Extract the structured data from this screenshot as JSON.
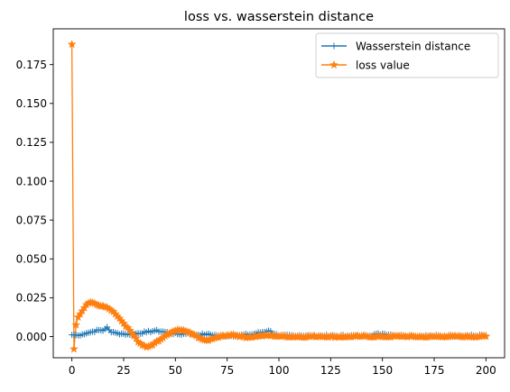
{
  "chart_data": {
    "type": "line",
    "title": "loss vs. wasserstein distance",
    "xlabel": "",
    "ylabel": "",
    "xlim": [
      -9,
      209
    ],
    "ylim": [
      -0.0136,
      0.198
    ],
    "xticks": [
      0,
      25,
      50,
      75,
      100,
      125,
      150,
      175,
      200
    ],
    "yticks": [
      0.0,
      0.025,
      0.05,
      0.075,
      0.1,
      0.125,
      0.15,
      0.175
    ],
    "ytick_labels": [
      "0.000",
      "0.025",
      "0.050",
      "0.075",
      "0.100",
      "0.125",
      "0.150",
      "0.175"
    ],
    "grid": false,
    "legend_position": "top-right",
    "series": [
      {
        "name": "Wasserstein distance",
        "color": "#1f77b4",
        "marker": "plus",
        "anchors": [
          [
            0,
            0.0012
          ],
          [
            3,
            0.0008
          ],
          [
            5,
            0.0015
          ],
          [
            8,
            0.0025
          ],
          [
            10,
            0.0032
          ],
          [
            13,
            0.0042
          ],
          [
            15,
            0.0038
          ],
          [
            17,
            0.0062
          ],
          [
            19,
            0.0028
          ],
          [
            22,
            0.0022
          ],
          [
            25,
            0.0018
          ],
          [
            28,
            0.0012
          ],
          [
            32,
            0.0022
          ],
          [
            36,
            0.0028
          ],
          [
            40,
            0.0038
          ],
          [
            44,
            0.0032
          ],
          [
            48,
            0.0022
          ],
          [
            52,
            0.0015
          ],
          [
            56,
            0.0022
          ],
          [
            60,
            0.0012
          ],
          [
            65,
            0.0015
          ],
          [
            70,
            0.0008
          ],
          [
            75,
            0.0005
          ],
          [
            80,
            0.0008
          ],
          [
            87,
            0.0015
          ],
          [
            95,
            0.0038
          ],
          [
            100,
            0.0005
          ],
          [
            110,
            0.0008
          ],
          [
            125,
            0.0004
          ],
          [
            140,
            0.0006
          ],
          [
            150,
            0.0018
          ],
          [
            160,
            0.0005
          ],
          [
            175,
            0.0004
          ],
          [
            190,
            0.0005
          ],
          [
            200,
            0.0008
          ]
        ],
        "jitter": 0.0006
      },
      {
        "name": "loss value",
        "color": "#ff7f0e",
        "marker": "star",
        "anchors": [
          [
            0,
            0.188
          ],
          [
            1,
            -0.008
          ],
          [
            2,
            0.0075
          ],
          [
            3,
            0.0125
          ],
          [
            4,
            0.0145
          ],
          [
            5,
            0.0165
          ],
          [
            6,
            0.0185
          ],
          [
            7,
            0.0205
          ],
          [
            8,
            0.0215
          ],
          [
            10,
            0.0218
          ],
          [
            12,
            0.0205
          ],
          [
            14,
            0.0195
          ],
          [
            16,
            0.019
          ],
          [
            18,
            0.0178
          ],
          [
            20,
            0.016
          ],
          [
            22,
            0.013
          ],
          [
            24,
            0.01
          ],
          [
            26,
            0.0065
          ],
          [
            28,
            0.004
          ],
          [
            30,
            0.0005
          ],
          [
            32,
            -0.0035
          ],
          [
            34,
            -0.0055
          ],
          [
            36,
            -0.0068
          ],
          [
            38,
            -0.0058
          ],
          [
            40,
            -0.0042
          ],
          [
            42,
            -0.0028
          ],
          [
            44,
            -0.0008
          ],
          [
            46,
            0.0012
          ],
          [
            48,
            0.0025
          ],
          [
            50,
            0.0038
          ],
          [
            52,
            0.0042
          ],
          [
            54,
            0.004
          ],
          [
            56,
            0.003
          ],
          [
            58,
            0.0015
          ],
          [
            60,
            0.0005
          ],
          [
            62,
            -0.001
          ],
          [
            64,
            -0.0022
          ],
          [
            66,
            -0.0025
          ],
          [
            68,
            -0.0015
          ],
          [
            70,
            -0.0005
          ],
          [
            72,
            0.0002
          ],
          [
            75,
            0.0008
          ],
          [
            78,
            0.0012
          ],
          [
            80,
            0.0005
          ],
          [
            85,
            -0.0005
          ],
          [
            90,
            0.0003
          ],
          [
            95,
            0.0007
          ],
          [
            100,
            0.0002
          ],
          [
            110,
            -0.0002
          ],
          [
            120,
            0.0002
          ],
          [
            130,
            -0.0002
          ],
          [
            140,
            0.0001
          ],
          [
            150,
            -0.0001
          ],
          [
            160,
            0.0002
          ],
          [
            170,
            -0.0002
          ],
          [
            180,
            0.0001
          ],
          [
            190,
            0.0
          ],
          [
            200,
            0.0001
          ]
        ],
        "jitter": 0.0005
      }
    ]
  }
}
